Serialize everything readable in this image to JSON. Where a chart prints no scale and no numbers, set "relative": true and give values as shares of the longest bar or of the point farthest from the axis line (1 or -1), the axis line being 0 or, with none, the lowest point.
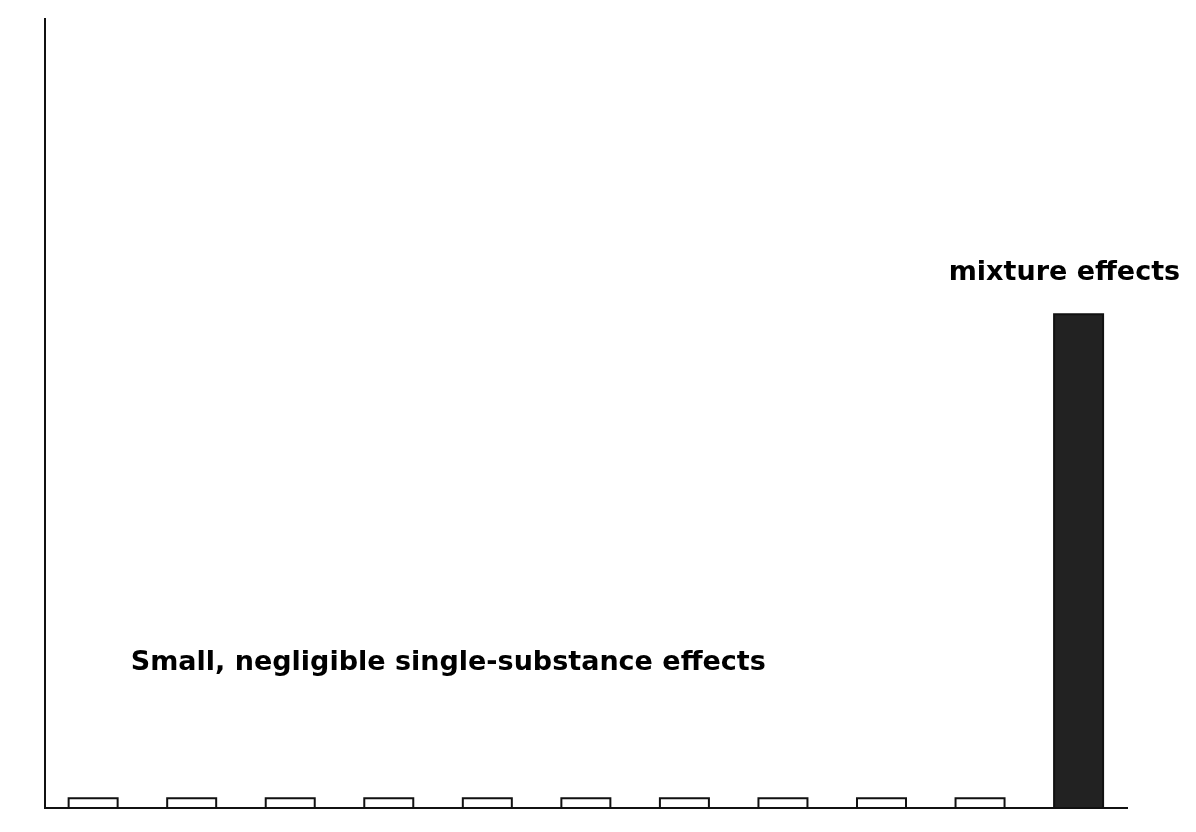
{
  "chart_data": {
    "type": "bar",
    "relative": true,
    "categories": [
      null,
      null,
      null,
      null,
      null,
      null,
      null,
      null,
      null,
      null,
      null
    ],
    "values": [
      0.02,
      0.02,
      0.02,
      0.02,
      0.02,
      0.02,
      0.02,
      0.02,
      0.02,
      0.02,
      1
    ],
    "colors": [
      "#ffffff",
      "#ffffff",
      "#ffffff",
      "#ffffff",
      "#ffffff",
      "#ffffff",
      "#ffffff",
      "#ffffff",
      "#ffffff",
      "#ffffff",
      "#222222"
    ],
    "annotations": [
      "Small, negligible single-substance effects",
      "mixture effects"
    ]
  }
}
